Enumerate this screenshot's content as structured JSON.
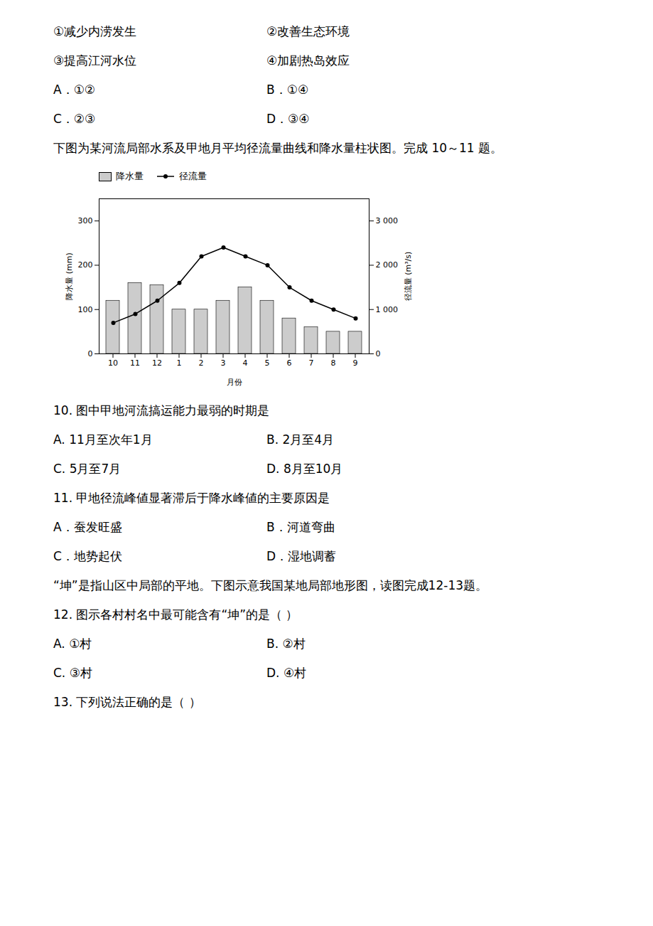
{
  "chart_data": {
    "type": "bar",
    "x_label": "月份",
    "y_label": "降水量 (mm)",
    "y2_label": "径流量 (m³/s)",
    "categories": [
      "10",
      "11",
      "12",
      "1",
      "2",
      "3",
      "4",
      "5",
      "6",
      "7",
      "8",
      "9"
    ],
    "series": [
      {
        "name": "降水量",
        "type": "bar",
        "color": "#cccccc",
        "values": [
          120,
          160,
          155,
          100,
          100,
          120,
          150,
          120,
          80,
          60,
          50,
          50
        ]
      },
      {
        "name": "径流量",
        "type": "line",
        "color": "#000000",
        "marker": "circle",
        "axis": "y2",
        "values": [
          700,
          900,
          1200,
          1600,
          2200,
          2400,
          2200,
          2000,
          1500,
          1200,
          1000,
          800
        ]
      }
    ],
    "ylim": [
      0,
      350
    ],
    "yticks": [
      0,
      100,
      200,
      300
    ],
    "y2lim": [
      0,
      3500
    ],
    "y2ticks": [
      0,
      {
        "value": 1000,
        "label": "1 000"
      },
      {
        "value": 2000,
        "label": "2 000"
      },
      {
        "value": 3000,
        "label": "3 000"
      }
    ],
    "legend": "upper left",
    "grid": false,
    "annotations": [
      "①减少内涝发生",
      "②改善生态环境",
      "③提高江河水位",
      "④加剧热岛效应",
      "A．①②",
      "B．①④",
      "C．②③",
      "D．③④",
      "下图为某河流局部水系及甲地月平均径流量曲线和降水量柱状图。完成 10～11 题。",
      "10. 图中甲地河流搞运能力最弱的时期是",
      "A. 11月至次年1月",
      "B. 2月至4月",
      "C. 5月至7月",
      "D. 8月至10月",
      "11. 甲地径流峰値显著滞后于降水峰値的主要原因是",
      "A．蚕发旺盛",
      "B．河道弯曲",
      "C．地势起伏",
      "D．湿地调蓄",
      "“坤”是指山区中局部的平地。下图示意我国某地局部地形图，读图完成12-13题。",
      "12. 图示各村村名中最可能含有“坤”的是（    ）",
      "A. ①村",
      "B. ②村",
      "C. ③村",
      "D. ④村",
      "13. 下列说法正确的是（    ）"
    ]
  }
}
